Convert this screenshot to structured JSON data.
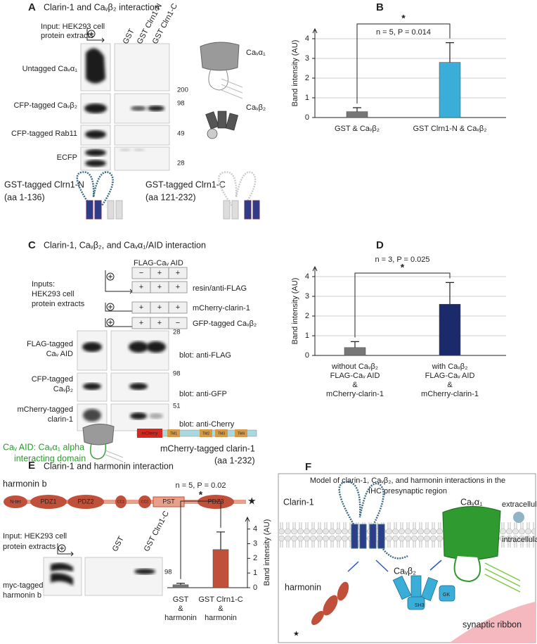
{
  "panels": {
    "A": {
      "label": "A",
      "title": "Clarin-1 and Caᵥβ₂ interaction",
      "input": [
        "Input: HEK293 cell",
        "protein extracts"
      ],
      "lanes": [
        "GST",
        "GST Clrn1-N",
        "GST Clrn1-C"
      ],
      "rows": [
        "Untagged Caᵥα₁",
        "CFP-tagged Caᵥβ₂",
        "CFP-tagged Rab11",
        "ECFP"
      ],
      "mw": [
        200,
        98,
        49,
        28
      ],
      "cartoons": [
        "Caᵥα₁",
        "Caᵥβ₂"
      ],
      "constructs": [
        [
          "GST-tagged Clrn1-N",
          "(aa 1-136)"
        ],
        [
          "GST-tagged Clrn1-C",
          "(aa 121-232)"
        ]
      ]
    },
    "C": {
      "label": "C",
      "title": "Clarin-1, Caᵥβ₂, and Caᵥα₁/AID interaction",
      "header": "FLAG-Caᵥ AID",
      "input": [
        "Inputs:",
        "HEK293 cell",
        "protein extracts"
      ],
      "signs": [
        [
          "−",
          "+",
          "+"
        ],
        [
          "+",
          "+",
          "+"
        ],
        [
          "+",
          "+",
          "+"
        ],
        [
          "+",
          "+",
          "−"
        ]
      ],
      "sign_labels": [
        "resin/anti-FLAG",
        "mCherry-clarin-1",
        "GFP-tagged Caᵥβ₂"
      ],
      "rows": [
        [
          "FLAG-tagged",
          "Caᵥ AID"
        ],
        [
          "CFP-tagged",
          "Caᵥβ₂"
        ],
        [
          "mCherry-tagged",
          "clarin-1"
        ]
      ],
      "blots": [
        "blot: anti-FLAG",
        "blot: anti-GFP",
        "blot: anti-Cherry"
      ],
      "mw": [
        28,
        98,
        51
      ],
      "aid_note": [
        "Caᵥ AID: Caᵥα₁ alpha",
        "interacting domain"
      ],
      "domains": [
        "mCherry",
        "TM1",
        "TM2",
        "TM3",
        "TM4"
      ],
      "construct": [
        "mCherry-tagged clarin-1",
        "(aa 1-232)"
      ]
    },
    "E": {
      "label": "E",
      "title": "Clarin-1 and harmonin interaction",
      "protein": "harmonin b",
      "domains": [
        "N-ter",
        "PDZ1",
        "PDZ2",
        "CC1",
        "CC2",
        "PST",
        "PDZ3"
      ],
      "input": [
        "Input: HEK293 cell",
        "protein extracts"
      ],
      "lanes": [
        "GST",
        "GST Clrn1-C"
      ],
      "row": [
        "myc-tagged",
        "harmonin b"
      ],
      "mw": 98
    },
    "F": {
      "label": "F",
      "title": [
        "Model of clarin-1, Caᵥβ₂, and harmonin interactions in the",
        "IHC presynaptic region"
      ],
      "labels": [
        "Clarin-1",
        "Caᵥα₁",
        "extracellular",
        "intracellular",
        "harmonin",
        "Caᵥβ₂",
        "synaptic ribbon",
        "AID",
        "SH3",
        "GK"
      ]
    }
  },
  "chart_data": [
    {
      "type": "bar",
      "label": "B",
      "ylabel": "Band intensity (AU)",
      "categories": [
        "GST & Caᵥβ₂",
        "GST Clrn1-N & Caᵥβ₂"
      ],
      "values": [
        0.3,
        2.8
      ],
      "errors": [
        0.2,
        1.0
      ],
      "colors": [
        "#777777",
        "#3aaed8"
      ],
      "ylim": [
        0,
        4.5
      ],
      "yticks": [
        0,
        1,
        2,
        3,
        4
      ],
      "grid": true,
      "axis_side": "left",
      "annotation": "n = 5, P = 0.014",
      "significance": "*"
    },
    {
      "type": "bar",
      "label": "D",
      "ylabel": "Band intensity (AU)",
      "categories": [
        "without Caᵥβ₂\nFLAG-Caᵥ AID\n&\nmCherry-clarin-1",
        "with Caᵥβ₂\nFLAG-Caᵥ AID\n&\nmCherry-clarin-1"
      ],
      "values": [
        0.4,
        2.6
      ],
      "errors": [
        0.3,
        1.1
      ],
      "colors": [
        "#777777",
        "#1b2a6b"
      ],
      "ylim": [
        0,
        4.5
      ],
      "yticks": [
        0,
        1,
        2,
        3,
        4
      ],
      "grid": true,
      "axis_side": "left",
      "annotation": "n = 3, P = 0.025",
      "significance": "*"
    },
    {
      "type": "bar",
      "ylabel": "Band intensity (AU)",
      "categories": [
        "GST\n&\nharmonin",
        "GST Clrn1-C\n&\nharmonin"
      ],
      "values": [
        0.2,
        2.6
      ],
      "errors": [
        0.1,
        1.2
      ],
      "colors": [
        "#777777",
        "#c0503a"
      ],
      "ylim": [
        0,
        4.8
      ],
      "yticks": [
        0,
        1,
        2,
        3,
        4
      ],
      "grid": false,
      "axis_side": "right",
      "annotation": "n = 5, P = 0.02",
      "significance": "*"
    }
  ]
}
